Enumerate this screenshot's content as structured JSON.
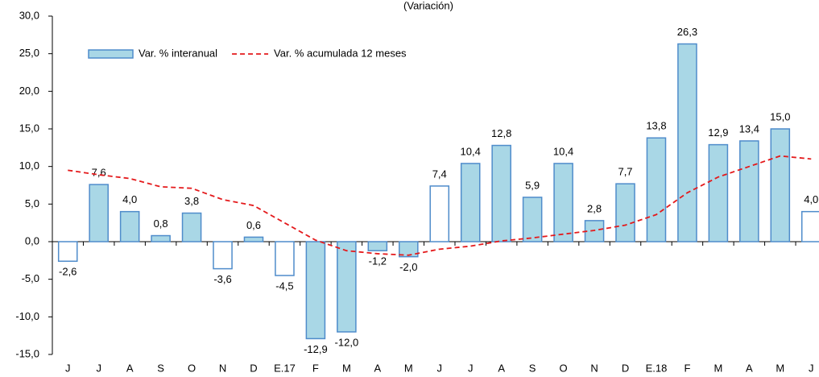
{
  "chart_data": {
    "type": "bar",
    "title": "(Variación)",
    "categories": [
      "J",
      "J",
      "A",
      "S",
      "O",
      "N",
      "D",
      "E.17",
      "F",
      "M",
      "A",
      "M",
      "J",
      "J",
      "A",
      "S",
      "O",
      "N",
      "D",
      "E.18",
      "F",
      "M",
      "A",
      "M",
      "J"
    ],
    "series": [
      {
        "name": "Var. % interanual",
        "type": "bar",
        "color": "#a9d7e6",
        "edgecolor": "#4f8ccb",
        "colors": [
          "#ffffff",
          "#a9d7e6",
          "#a9d7e6",
          "#a9d7e6",
          "#a9d7e6",
          "#ffffff",
          "#a9d7e6",
          "#ffffff",
          "#a9d7e6",
          "#a9d7e6",
          "#a9d7e6",
          "#a9d7e6",
          "#ffffff",
          "#a9d7e6",
          "#a9d7e6",
          "#a9d7e6",
          "#a9d7e6",
          "#a9d7e6",
          "#a9d7e6",
          "#a9d7e6",
          "#a9d7e6",
          "#a9d7e6",
          "#a9d7e6",
          "#a9d7e6",
          "#ffffff"
        ],
        "values": [
          -2.6,
          7.6,
          4.0,
          0.8,
          3.8,
          -3.6,
          0.6,
          -4.5,
          -12.9,
          -12.0,
          -1.2,
          -2.0,
          7.4,
          10.4,
          12.8,
          5.9,
          10.4,
          2.8,
          7.7,
          13.8,
          26.3,
          12.9,
          13.4,
          15.0,
          4.0
        ],
        "value_labels": [
          "-2,6",
          "7,6",
          "4,0",
          "0,8",
          "3,8",
          "-3,6",
          "0,6",
          "-4,5",
          "-12,9",
          "-12,0",
          "-1,2",
          "-2,0",
          "7,4",
          "10,4",
          "12,8",
          "5,9",
          "10,4",
          "2,8",
          "7,7",
          "13,8",
          "26,3",
          "12,9",
          "13,4",
          "15,0",
          "4,0"
        ]
      },
      {
        "name": "Var. % acumulada 12 meses",
        "type": "line",
        "color": "#e41a1c",
        "linestyle": "dashed",
        "values": [
          9.5,
          8.9,
          8.4,
          7.3,
          7.1,
          5.6,
          4.8,
          2.5,
          0.2,
          -1.2,
          -1.6,
          -1.8,
          -1.0,
          -0.6,
          0.1,
          0.5,
          1.0,
          1.5,
          2.2,
          3.6,
          6.5,
          8.6,
          10.0,
          11.4,
          11.0
        ]
      }
    ],
    "ylim": [
      -15,
      30
    ],
    "yticks": [
      {
        "value": -15,
        "label": "-15,0"
      },
      {
        "value": -10,
        "label": "-10,0"
      },
      {
        "value": -5,
        "label": "-5,0"
      },
      {
        "value": 0,
        "label": "0,0"
      },
      {
        "value": 5,
        "label": "5,0"
      },
      {
        "value": 10,
        "label": "10,0"
      },
      {
        "value": 15,
        "label": "15,0"
      },
      {
        "value": 20,
        "label": "20,0"
      },
      {
        "value": 25,
        "label": "25,0"
      },
      {
        "value": 30,
        "label": "30,0"
      }
    ],
    "legend": "upper left"
  }
}
